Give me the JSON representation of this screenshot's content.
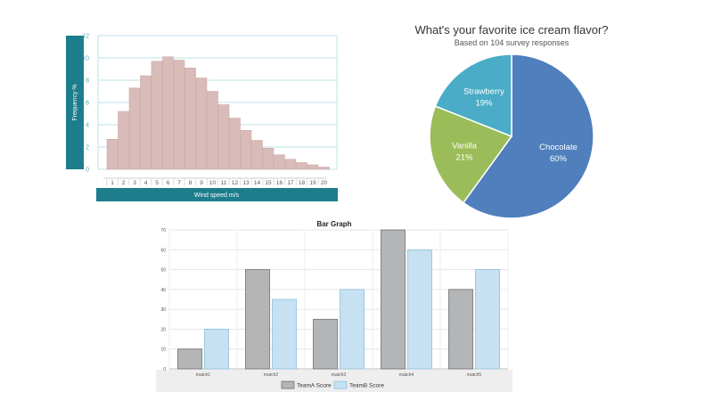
{
  "chart_data": [
    {
      "type": "bar",
      "xlabel": "Wind speed m/s",
      "ylabel": "Frequency %",
      "categories": [
        "1",
        "2",
        "3",
        "4",
        "5",
        "6",
        "7",
        "8",
        "9",
        "10",
        "11",
        "12",
        "13",
        "14",
        "15",
        "16",
        "17",
        "18",
        "19",
        "20"
      ],
      "values": [
        2.7,
        5.2,
        7.3,
        8.4,
        9.7,
        10.1,
        9.8,
        9.1,
        8.2,
        7.0,
        5.8,
        4.6,
        3.5,
        2.6,
        1.9,
        1.3,
        0.9,
        0.6,
        0.4,
        0.2
      ],
      "ylim": [
        0,
        12
      ],
      "yticks": [
        "0",
        "2",
        "4",
        "6",
        "8",
        "10",
        "12"
      ],
      "grid": true,
      "colors": {
        "bar": "#d9bcba",
        "bar_edge": "#c7a09d",
        "band": "#1d7d8c",
        "axis_text": "#5aa8b5",
        "grid": "#bfe3e8"
      }
    },
    {
      "type": "pie",
      "title": "What's your favorite ice cream flavor?",
      "subtitle": "Based on 104 survey responses",
      "slices": [
        {
          "name": "Chocolate",
          "value": 60,
          "label": "60%",
          "color": "#4f7fbc"
        },
        {
          "name": "Vanilla",
          "value": 21,
          "label": "21%",
          "color": "#9bbd59"
        },
        {
          "name": "Strawberry",
          "value": 19,
          "label": "19%",
          "color": "#4aacc6"
        }
      ]
    },
    {
      "type": "bar",
      "title": "Bar Graph",
      "categories": [
        "match1",
        "match2",
        "match3",
        "match4",
        "match5"
      ],
      "series": [
        {
          "name": "TeamA Score",
          "values": [
            10,
            50,
            25,
            70,
            40
          ],
          "color": "#b4b5b7",
          "edge": "#6e6f71"
        },
        {
          "name": "TeamB Score",
          "values": [
            20,
            35,
            40,
            60,
            50
          ],
          "color": "#c5e1f2",
          "edge": "#8fc0de"
        }
      ],
      "ylim": [
        0,
        70
      ],
      "yticks": [
        "0",
        "10",
        "20",
        "30",
        "40",
        "50",
        "60",
        "70"
      ],
      "grid": true,
      "legend": "bottom"
    }
  ]
}
